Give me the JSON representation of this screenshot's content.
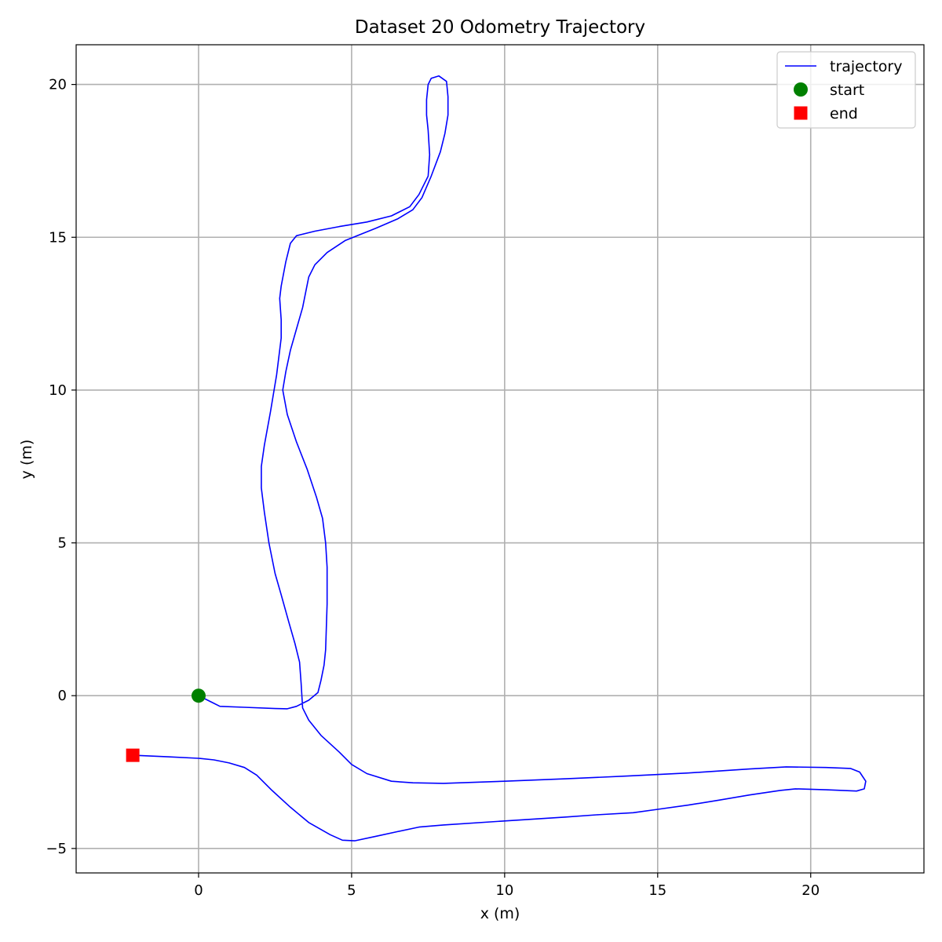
{
  "chart_data": {
    "type": "line",
    "title": "Dataset 20 Odometry Trajectory",
    "xlabel": "x (m)",
    "ylabel": "y (m)",
    "xlim": [
      -4.0,
      23.7
    ],
    "ylim": [
      -5.8,
      21.3
    ],
    "xticks": [
      0,
      5,
      10,
      15,
      20
    ],
    "yticks": [
      -5,
      0,
      5,
      10,
      15,
      20
    ],
    "grid": true,
    "legend_position": "top-right",
    "series": [
      {
        "name": "trajectory",
        "kind": "line",
        "color": "#0000ff",
        "points": [
          [
            0.0,
            0.0
          ],
          [
            0.4,
            -0.2
          ],
          [
            0.7,
            -0.35
          ],
          [
            1.5,
            -0.38
          ],
          [
            2.5,
            -0.42
          ],
          [
            2.9,
            -0.43
          ],
          [
            3.2,
            -0.35
          ],
          [
            3.6,
            -0.15
          ],
          [
            3.9,
            0.1
          ],
          [
            4.0,
            0.5
          ],
          [
            4.1,
            1.0
          ],
          [
            4.15,
            1.5
          ],
          [
            4.2,
            3.0
          ],
          [
            4.2,
            4.2
          ],
          [
            4.15,
            5.0
          ],
          [
            4.05,
            5.8
          ],
          [
            3.85,
            6.5
          ],
          [
            3.55,
            7.4
          ],
          [
            3.2,
            8.3
          ],
          [
            2.9,
            9.2
          ],
          [
            2.75,
            10.0
          ],
          [
            2.85,
            10.6
          ],
          [
            3.0,
            11.3
          ],
          [
            3.2,
            12.0
          ],
          [
            3.4,
            12.7
          ],
          [
            3.5,
            13.2
          ],
          [
            3.6,
            13.7
          ],
          [
            3.8,
            14.1
          ],
          [
            4.2,
            14.5
          ],
          [
            4.8,
            14.9
          ],
          [
            5.8,
            15.3
          ],
          [
            6.5,
            15.6
          ],
          [
            7.0,
            15.9
          ],
          [
            7.3,
            16.3
          ],
          [
            7.6,
            17.0
          ],
          [
            7.9,
            17.8
          ],
          [
            8.05,
            18.4
          ],
          [
            8.15,
            19.0
          ],
          [
            8.15,
            19.6
          ],
          [
            8.1,
            20.1
          ],
          [
            7.85,
            20.28
          ],
          [
            7.6,
            20.2
          ],
          [
            7.5,
            20.0
          ],
          [
            7.45,
            19.5
          ],
          [
            7.45,
            19.0
          ],
          [
            7.5,
            18.5
          ],
          [
            7.55,
            17.7
          ],
          [
            7.5,
            17.0
          ],
          [
            7.2,
            16.4
          ],
          [
            6.9,
            16.0
          ],
          [
            6.3,
            15.7
          ],
          [
            5.5,
            15.5
          ],
          [
            4.6,
            15.35
          ],
          [
            3.8,
            15.2
          ],
          [
            3.2,
            15.05
          ],
          [
            3.0,
            14.8
          ],
          [
            2.85,
            14.2
          ],
          [
            2.7,
            13.4
          ],
          [
            2.65,
            13.0
          ],
          [
            2.7,
            12.3
          ],
          [
            2.7,
            11.7
          ],
          [
            2.55,
            10.5
          ],
          [
            2.35,
            9.3
          ],
          [
            2.15,
            8.2
          ],
          [
            2.05,
            7.5
          ],
          [
            2.05,
            6.8
          ],
          [
            2.15,
            6.0
          ],
          [
            2.3,
            5.0
          ],
          [
            2.5,
            4.0
          ],
          [
            2.7,
            3.3
          ],
          [
            2.95,
            2.4
          ],
          [
            3.15,
            1.7
          ],
          [
            3.3,
            1.1
          ],
          [
            3.35,
            0.4
          ],
          [
            3.4,
            -0.4
          ],
          [
            3.6,
            -0.8
          ],
          [
            4.0,
            -1.3
          ],
          [
            4.6,
            -1.85
          ],
          [
            5.0,
            -2.25
          ],
          [
            5.5,
            -2.55
          ],
          [
            6.3,
            -2.8
          ],
          [
            7.0,
            -2.85
          ],
          [
            8.0,
            -2.87
          ],
          [
            10.0,
            -2.8
          ],
          [
            12.0,
            -2.72
          ],
          [
            14.0,
            -2.63
          ],
          [
            16.0,
            -2.53
          ],
          [
            18.0,
            -2.4
          ],
          [
            19.2,
            -2.33
          ],
          [
            20.5,
            -2.35
          ],
          [
            21.3,
            -2.38
          ],
          [
            21.6,
            -2.5
          ],
          [
            21.8,
            -2.8
          ],
          [
            21.75,
            -3.05
          ],
          [
            21.5,
            -3.12
          ],
          [
            20.5,
            -3.08
          ],
          [
            19.5,
            -3.05
          ],
          [
            19.0,
            -3.1
          ],
          [
            18.0,
            -3.25
          ],
          [
            17.0,
            -3.42
          ],
          [
            16.0,
            -3.58
          ],
          [
            15.0,
            -3.72
          ],
          [
            14.2,
            -3.83
          ],
          [
            13.0,
            -3.9
          ],
          [
            12.0,
            -3.97
          ],
          [
            10.0,
            -4.1
          ],
          [
            8.0,
            -4.23
          ],
          [
            7.2,
            -4.3
          ],
          [
            6.5,
            -4.45
          ],
          [
            5.8,
            -4.6
          ],
          [
            5.1,
            -4.75
          ],
          [
            4.7,
            -4.73
          ],
          [
            4.3,
            -4.55
          ],
          [
            3.6,
            -4.15
          ],
          [
            3.0,
            -3.65
          ],
          [
            2.4,
            -3.1
          ],
          [
            1.9,
            -2.6
          ],
          [
            1.5,
            -2.35
          ],
          [
            1.0,
            -2.2
          ],
          [
            0.5,
            -2.1
          ],
          [
            0.0,
            -2.05
          ],
          [
            -1.0,
            -2.0
          ],
          [
            -2.15,
            -1.95
          ]
        ]
      },
      {
        "name": "start",
        "kind": "marker",
        "marker": "circle",
        "color": "#008000",
        "points": [
          [
            0.0,
            0.0
          ]
        ]
      },
      {
        "name": "end",
        "kind": "marker",
        "marker": "square",
        "color": "#ff0000",
        "points": [
          [
            -2.15,
            -1.95
          ]
        ]
      }
    ]
  }
}
